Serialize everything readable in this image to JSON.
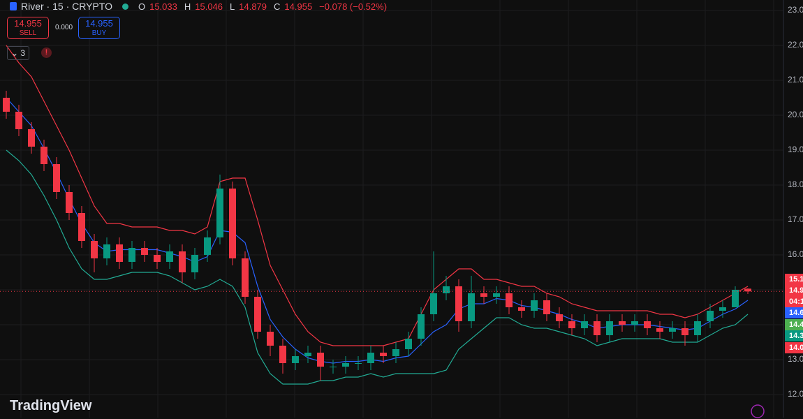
{
  "header": {
    "symbol": "River · 15 · CRYPTO",
    "ohlc_labels": [
      "O",
      "H",
      "L",
      "C"
    ],
    "change": "−0.078 (−0.52%)",
    "sell_price": "14.955",
    "sell_label": "SELL",
    "spread": "0.000",
    "buy_price": "14.955",
    "buy_label": "BUY",
    "indicator_count": "3",
    "alert": "!",
    "brand": "TradingView",
    "price_tags": [
      {
        "label": "15.1",
        "color": "#f23645"
      },
      {
        "label": "14.9",
        "color": "#f23645"
      },
      {
        "label": "04:1",
        "color": "#f23645"
      },
      {
        "label": "14.6",
        "color": "#2962ff"
      },
      {
        "label": "14.4",
        "color": "#4caf50"
      },
      {
        "label": "14.3",
        "color": "#089981"
      },
      {
        "label": "14.0",
        "color": "#f23645"
      }
    ]
  },
  "chart_data": {
    "type": "candlestick",
    "up_color": "#089981",
    "down_color": "#f23645",
    "ylim": [
      11.34,
      23.3
    ],
    "yticks": [
      {
        "value": 12,
        "label": "12.0"
      },
      {
        "value": 13,
        "label": "13.0"
      },
      {
        "value": 14,
        "label": "14.0"
      },
      {
        "value": 15,
        "label": "15.0"
      },
      {
        "value": 16,
        "label": "16.0"
      },
      {
        "value": 17,
        "label": "17.0"
      },
      {
        "value": 18,
        "label": "18.0"
      },
      {
        "value": 19,
        "label": "19.0"
      },
      {
        "value": 20,
        "label": "20.0"
      },
      {
        "value": 21,
        "label": "21.0"
      },
      {
        "value": 22,
        "label": "22.0"
      },
      {
        "value": 23,
        "label": "23.0"
      }
    ],
    "grid": true,
    "open": [
      20.5,
      20.1,
      19.6,
      19.1,
      18.6,
      17.8,
      17.2,
      16.4,
      15.9,
      16.3,
      15.8,
      16.2,
      16.0,
      15.8,
      16.1,
      15.5,
      16.0,
      16.5,
      17.9,
      15.9,
      14.8,
      13.8,
      13.4,
      12.9,
      13.1,
      13.2,
      12.8,
      12.8,
      12.9,
      12.9,
      13.2,
      13.1,
      13.3,
      13.6,
      14.3,
      14.9,
      15.1,
      14.1,
      14.9,
      14.8,
      14.9,
      14.5,
      14.4,
      14.7,
      14.3,
      14.1,
      13.9,
      14.1,
      13.7,
      14.1,
      14.0,
      14.1,
      13.9,
      13.8,
      13.9,
      13.7,
      14.1,
      14.4,
      14.5,
      15.033
    ],
    "high": [
      20.7,
      20.3,
      19.8,
      19.3,
      18.8,
      18.0,
      17.4,
      16.6,
      16.5,
      16.5,
      16.4,
      16.4,
      16.2,
      16.3,
      16.3,
      16.2,
      16.7,
      18.3,
      18.1,
      16.1,
      15.0,
      14.0,
      13.6,
      13.3,
      13.4,
      13.4,
      13.0,
      13.1,
      13.1,
      13.4,
      13.4,
      13.5,
      13.8,
      14.5,
      16.1,
      15.4,
      15.3,
      15.4,
      15.1,
      15.1,
      15.1,
      14.7,
      14.9,
      14.9,
      14.5,
      14.3,
      14.3,
      14.3,
      14.3,
      14.3,
      14.3,
      14.3,
      14.1,
      14.1,
      14.1,
      14.3,
      14.6,
      14.7,
      15.1,
      15.046
    ],
    "low": [
      19.9,
      19.4,
      18.9,
      18.4,
      17.6,
      17.0,
      16.2,
      15.5,
      15.7,
      15.6,
      15.6,
      15.8,
      15.6,
      15.6,
      15.2,
      15.3,
      15.8,
      16.3,
      15.7,
      14.6,
      13.6,
      13.1,
      12.6,
      12.7,
      12.9,
      12.4,
      12.6,
      12.6,
      12.7,
      12.7,
      12.9,
      12.9,
      13.1,
      13.4,
      14.1,
      14.7,
      13.8,
      13.9,
      14.6,
      14.6,
      14.3,
      14.2,
      14.2,
      14.1,
      13.9,
      13.7,
      13.7,
      13.5,
      13.5,
      13.8,
      13.8,
      13.7,
      13.6,
      13.6,
      13.4,
      13.5,
      13.9,
      14.2,
      14.6,
      14.879
    ],
    "close": [
      20.1,
      19.6,
      19.1,
      18.6,
      17.8,
      17.2,
      16.4,
      15.9,
      16.3,
      15.8,
      16.2,
      16.0,
      15.8,
      16.1,
      15.5,
      16.0,
      16.5,
      17.9,
      15.9,
      14.8,
      13.8,
      13.4,
      12.9,
      13.1,
      13.2,
      12.8,
      12.8,
      12.9,
      12.9,
      13.2,
      13.1,
      13.3,
      13.6,
      14.3,
      14.9,
      15.1,
      14.1,
      14.9,
      14.8,
      14.9,
      14.5,
      14.4,
      14.7,
      14.3,
      14.1,
      13.9,
      14.1,
      13.7,
      14.1,
      14.0,
      14.1,
      13.9,
      13.8,
      13.9,
      13.7,
      14.1,
      14.4,
      14.5,
      15.0,
      14.955
    ],
    "bands": [
      {
        "color": "#f23645",
        "values": [
          22.0,
          21.5,
          21.1,
          20.4,
          19.7,
          19.0,
          18.2,
          17.4,
          16.9,
          16.9,
          16.8,
          16.8,
          16.8,
          16.7,
          16.7,
          16.6,
          16.8,
          18.1,
          18.2,
          18.2,
          17.0,
          15.7,
          15.0,
          14.3,
          13.8,
          13.5,
          13.4,
          13.4,
          13.4,
          13.4,
          13.4,
          13.5,
          13.6,
          14.3,
          15.0,
          15.3,
          15.6,
          15.6,
          15.3,
          15.3,
          15.2,
          15.1,
          15.1,
          14.9,
          14.8,
          14.6,
          14.5,
          14.4,
          14.4,
          14.4,
          14.4,
          14.4,
          14.3,
          14.3,
          14.2,
          14.3,
          14.5,
          14.7,
          14.9,
          15.1
        ]
      },
      {
        "color": "#2962ff",
        "values": [
          20.5,
          20.1,
          19.7,
          19.05,
          18.35,
          17.6,
          16.9,
          16.35,
          16.1,
          16.15,
          16.15,
          16.15,
          16.15,
          16.05,
          15.95,
          15.8,
          15.95,
          16.7,
          16.65,
          16.35,
          15.1,
          14.15,
          13.65,
          13.3,
          13.05,
          12.95,
          12.9,
          12.95,
          12.95,
          13.0,
          12.95,
          13.05,
          13.1,
          13.45,
          13.8,
          14.0,
          14.45,
          14.6,
          14.6,
          14.75,
          14.7,
          14.55,
          14.5,
          14.4,
          14.3,
          14.15,
          14.05,
          13.9,
          13.95,
          14.0,
          14.0,
          14.0,
          13.95,
          13.9,
          13.85,
          13.9,
          14.1,
          14.3,
          14.45,
          14.7
        ]
      },
      {
        "color": "#22ab94",
        "values": [
          19.0,
          18.7,
          18.3,
          17.7,
          17.0,
          16.2,
          15.6,
          15.3,
          15.3,
          15.4,
          15.5,
          15.5,
          15.5,
          15.4,
          15.2,
          15.0,
          15.1,
          15.3,
          15.1,
          14.5,
          13.2,
          12.6,
          12.3,
          12.3,
          12.3,
          12.4,
          12.4,
          12.5,
          12.5,
          12.6,
          12.5,
          12.6,
          12.6,
          12.6,
          12.6,
          12.7,
          13.3,
          13.6,
          13.9,
          14.2,
          14.2,
          14.0,
          13.9,
          13.9,
          13.8,
          13.7,
          13.6,
          13.4,
          13.5,
          13.6,
          13.6,
          13.6,
          13.6,
          13.5,
          13.5,
          13.5,
          13.7,
          13.9,
          14.0,
          14.3
        ]
      }
    ]
  }
}
